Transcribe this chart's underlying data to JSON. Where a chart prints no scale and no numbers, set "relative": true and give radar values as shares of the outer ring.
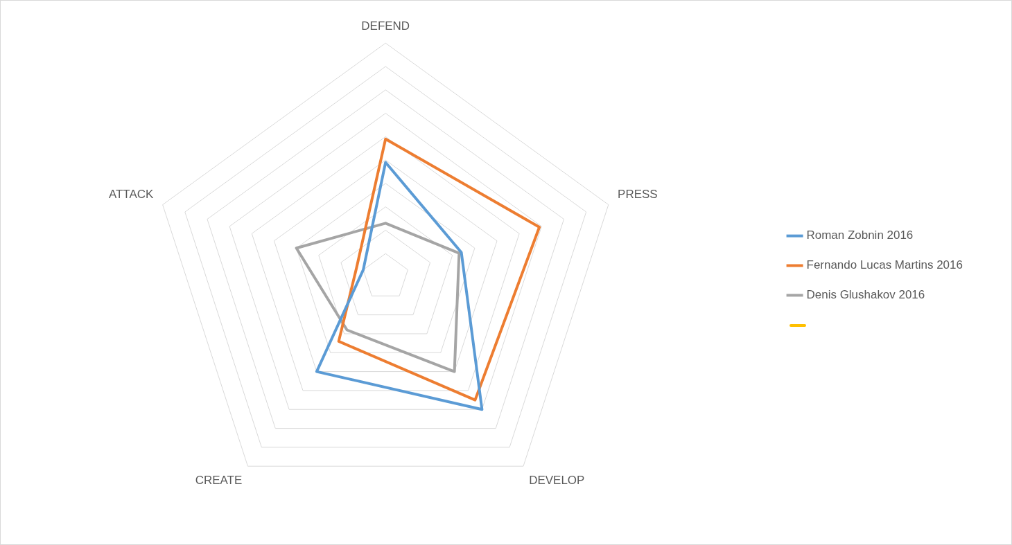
{
  "chart_data": {
    "type": "radar",
    "relative": true,
    "categories": [
      "DEFEND",
      "PRESS",
      "DEVELOP",
      "CREATE",
      "ATTACK"
    ],
    "legend": "right",
    "marker": "none",
    "series": [
      {
        "name": "Roman Zobnin 2016",
        "color": "#5b9bd5",
        "values": [
          0.49,
          0.34,
          0.7,
          0.5,
          0.1
        ]
      },
      {
        "name": "Fernando Lucas Martins 2016",
        "color": "#ed7d31",
        "values": [
          0.59,
          0.69,
          0.65,
          0.34,
          0.13
        ]
      },
      {
        "name": "Denis Glushakov 2016",
        "color": "#a5a5a5",
        "values": [
          0.23,
          0.33,
          0.5,
          0.28,
          0.4
        ]
      }
    ]
  }
}
